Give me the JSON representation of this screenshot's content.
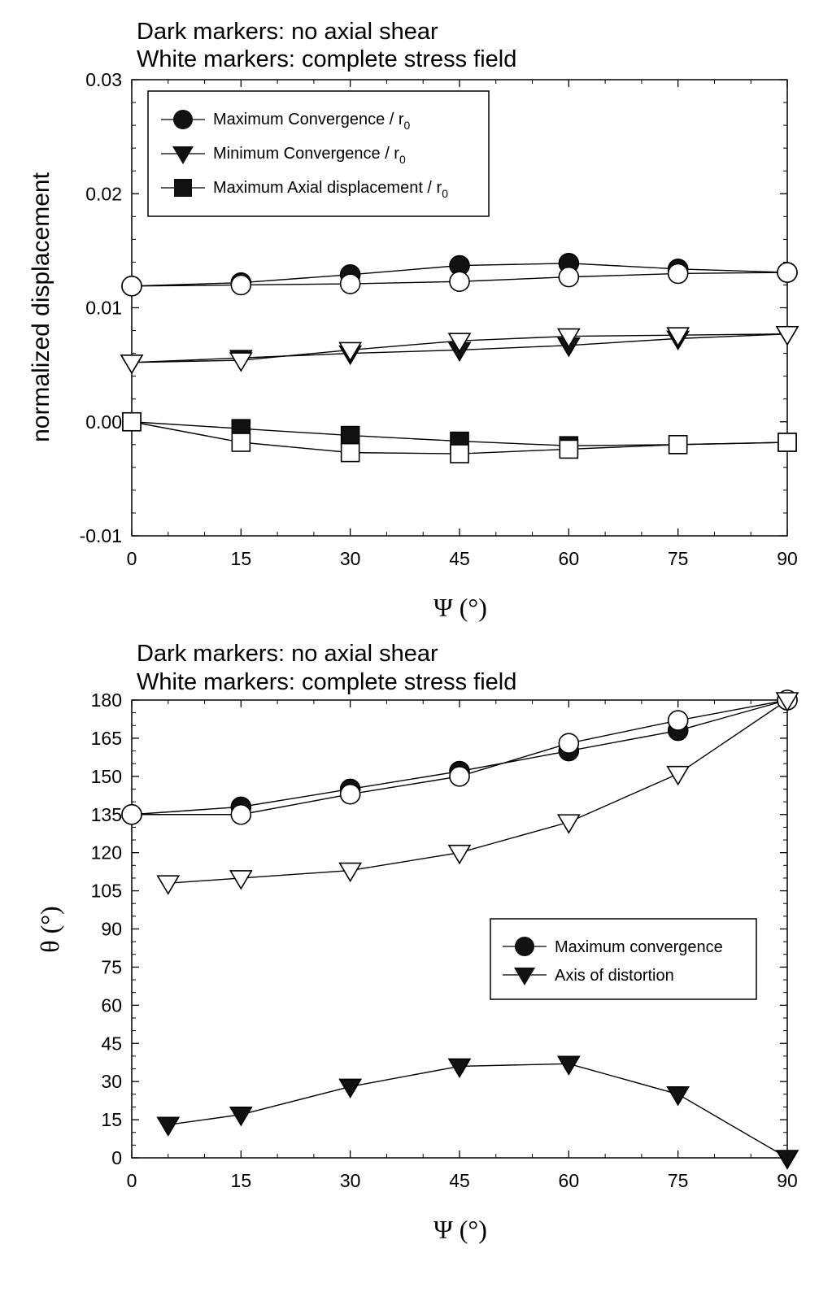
{
  "chart_data": [
    {
      "type": "line",
      "annotations": [
        "Dark markers: no axial shear",
        "White markers: complete stress field"
      ],
      "xlabel": "Ψ (°)",
      "ylabel": "normalized displacement",
      "xlim": [
        0,
        90
      ],
      "ylim": [
        -0.01,
        0.03
      ],
      "xticks": [
        0,
        15,
        30,
        45,
        60,
        75,
        90
      ],
      "yticks": [
        -0.01,
        0.0,
        0.01,
        0.02,
        0.03
      ],
      "ytick_labels": [
        "-0.01",
        "0.00",
        "0.01",
        "0.02",
        "0.03"
      ],
      "grid": false,
      "legend_position": "top-left",
      "legend": [
        {
          "label": "Maximum Convergence / r",
          "sub": "0",
          "marker": "circle"
        },
        {
          "label": "Minimum Convergence / r",
          "sub": "0",
          "marker": "triangle-down"
        },
        {
          "label": "Maximum Axial displacement / r",
          "sub": "0",
          "marker": "square"
        }
      ],
      "series": [
        {
          "marker": "circle",
          "fill": "dark",
          "x": [
            0,
            15,
            30,
            45,
            60,
            75,
            90
          ],
          "y": [
            0.0119,
            0.0122,
            0.0129,
            0.0137,
            0.0139,
            0.0134,
            0.0131
          ]
        },
        {
          "marker": "circle",
          "fill": "white",
          "x": [
            0,
            15,
            30,
            45,
            60,
            75,
            90
          ],
          "y": [
            0.0119,
            0.012,
            0.0121,
            0.0123,
            0.0127,
            0.013,
            0.0131
          ]
        },
        {
          "marker": "triangle-down",
          "fill": "dark",
          "x": [
            0,
            15,
            30,
            45,
            60,
            75,
            90
          ],
          "y": [
            0.0052,
            0.0056,
            0.006,
            0.0063,
            0.0067,
            0.0073,
            0.0077
          ]
        },
        {
          "marker": "triangle-down",
          "fill": "white",
          "x": [
            0,
            15,
            30,
            45,
            60,
            75,
            90
          ],
          "y": [
            0.0052,
            0.0054,
            0.0063,
            0.0071,
            0.0075,
            0.0076,
            0.0077
          ]
        },
        {
          "marker": "square",
          "fill": "dark",
          "x": [
            0,
            15,
            30,
            45,
            60,
            75,
            90
          ],
          "y": [
            0.0,
            -0.0006,
            -0.0012,
            -0.0017,
            -0.0021,
            -0.002,
            -0.0018
          ]
        },
        {
          "marker": "square",
          "fill": "white",
          "x": [
            0,
            15,
            30,
            45,
            60,
            75,
            90
          ],
          "y": [
            0.0,
            -0.0018,
            -0.0027,
            -0.0028,
            -0.0024,
            -0.002,
            -0.0018
          ]
        }
      ]
    },
    {
      "type": "line",
      "annotations": [
        "Dark markers: no axial shear",
        "White markers: complete stress field"
      ],
      "xlabel": "Ψ (°)",
      "ylabel": "θ (°)",
      "xlim": [
        0,
        90
      ],
      "ylim": [
        0,
        180
      ],
      "xticks": [
        0,
        15,
        30,
        45,
        60,
        75,
        90
      ],
      "yticks": [
        0,
        15,
        30,
        45,
        60,
        75,
        90,
        105,
        120,
        135,
        150,
        165,
        180
      ],
      "grid": false,
      "legend_position": "center-right",
      "legend": [
        {
          "label": "Maximum convergence",
          "marker": "circle"
        },
        {
          "label": "Axis of distortion",
          "marker": "triangle-down"
        }
      ],
      "series": [
        {
          "marker": "circle",
          "fill": "dark",
          "x": [
            0,
            15,
            30,
            45,
            60,
            75,
            90
          ],
          "y": [
            135,
            138,
            145,
            152,
            160,
            168,
            180
          ]
        },
        {
          "marker": "circle",
          "fill": "white",
          "x": [
            0,
            15,
            30,
            45,
            60,
            75,
            90
          ],
          "y": [
            135,
            135,
            143,
            150,
            163,
            172,
            180
          ]
        },
        {
          "marker": "triangle-down",
          "fill": "dark",
          "x": [
            5,
            15,
            30,
            45,
            60,
            75,
            90
          ],
          "y": [
            13,
            17,
            28,
            36,
            37,
            25,
            0
          ]
        },
        {
          "marker": "triangle-down",
          "fill": "white",
          "x": [
            5,
            15,
            30,
            45,
            60,
            75,
            90
          ],
          "y": [
            108,
            110,
            113,
            120,
            132,
            151,
            180
          ]
        }
      ]
    }
  ]
}
